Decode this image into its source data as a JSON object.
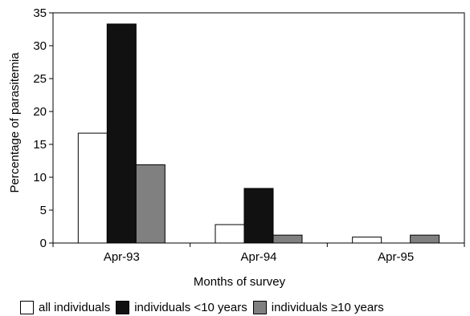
{
  "chart_data": {
    "type": "bar",
    "title": "",
    "xlabel": "Months of survey",
    "ylabel": "Percentage of parasitemia",
    "categories": [
      "Apr-93",
      "Apr-94",
      "Apr-95"
    ],
    "ylim": [
      0,
      35
    ],
    "yticks": [
      0,
      5,
      10,
      15,
      20,
      25,
      30,
      35
    ],
    "grid": false,
    "legend_position": "bottom",
    "series": [
      {
        "name": "all individuals",
        "color": "#ffffff",
        "values": [
          16.7,
          2.8,
          0.9
        ]
      },
      {
        "name": "individuals <10 years",
        "color": "#111111",
        "values": [
          33.3,
          8.3,
          0
        ]
      },
      {
        "name": "individuals ≥10 years",
        "color": "#808080",
        "values": [
          11.9,
          1.2,
          1.2
        ]
      }
    ]
  }
}
